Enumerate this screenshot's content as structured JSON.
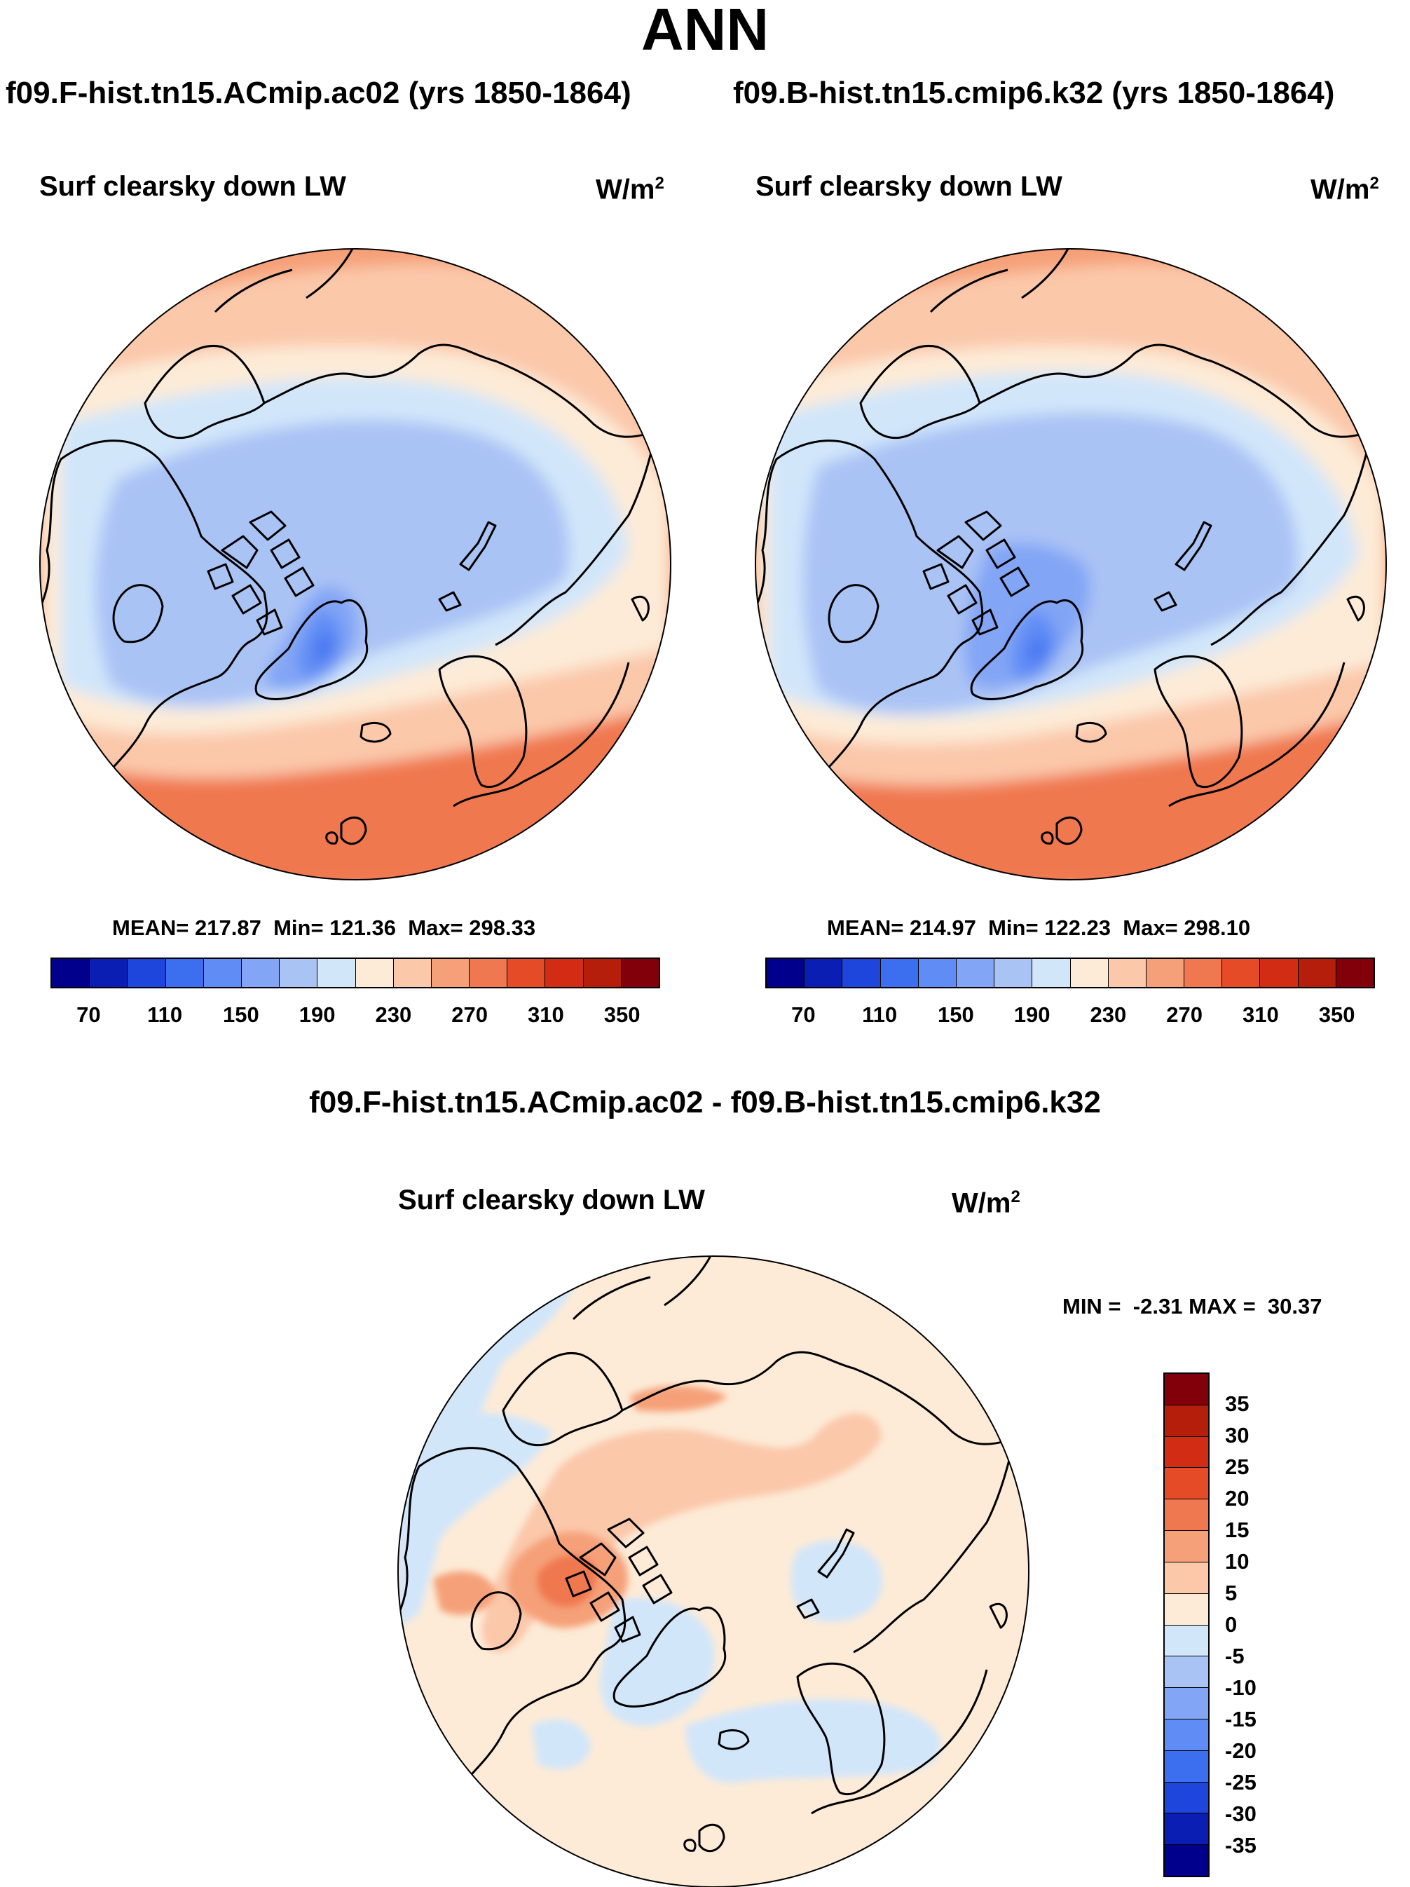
{
  "page_title": "ANN",
  "panels": [
    {
      "model": "f09.F-hist.tn15.ACmip.ac02 (yrs 1850-1864)",
      "variable": "Surf clearsky down LW",
      "units_base": "W/m",
      "units_exp": "2",
      "stats": {
        "mean_label": "MEAN=",
        "mean": "217.87",
        "min_label": "Min=",
        "min": "121.36",
        "max_label": "Max=",
        "max": "298.33"
      }
    },
    {
      "model": "f09.B-hist.tn15.cmip6.k32 (yrs 1850-1864)",
      "variable": "Surf clearsky down LW",
      "units_base": "W/m",
      "units_exp": "2",
      "stats": {
        "mean_label": "MEAN=",
        "mean": "214.97",
        "min_label": "Min=",
        "min": "122.23",
        "max_label": "Max=",
        "max": "298.10"
      }
    }
  ],
  "difference": {
    "title": "f09.F-hist.tn15.ACmip.ac02 - f09.B-hist.tn15.cmip6.k32",
    "variable": "Surf clearsky down LW",
    "units_base": "W/m",
    "units_exp": "2",
    "stats": {
      "min_label": "MIN =",
      "min": "-2.31",
      "max_label": "MAX =",
      "max": "30.37"
    }
  },
  "colorbars": {
    "absolute": {
      "ticks": [
        "70",
        "110",
        "150",
        "190",
        "230",
        "270",
        "310",
        "350"
      ],
      "colors": [
        "#00008c",
        "#0a1eb4",
        "#1e46dc",
        "#3c6ef0",
        "#5f8cf5",
        "#82a5f5",
        "#aac3f5",
        "#d2e6fa",
        "#fdebd7",
        "#fbc8aa",
        "#f5a078",
        "#f07850",
        "#e64b28",
        "#d22d14",
        "#b41e0a",
        "#82000a"
      ]
    },
    "difference": {
      "ticks": [
        "35",
        "30",
        "25",
        "20",
        "15",
        "10",
        "5",
        "0",
        "-5",
        "-10",
        "-15",
        "-20",
        "-25",
        "-30",
        "-35"
      ],
      "colors": [
        "#82000a",
        "#b41e0a",
        "#d22d14",
        "#e64b28",
        "#f07850",
        "#f5a078",
        "#fbc8aa",
        "#fdebd7",
        "#d2e6fa",
        "#aac3f5",
        "#82a5f5",
        "#5f8cf5",
        "#3c6ef0",
        "#1e46dc",
        "#0a1eb4",
        "#00008c"
      ]
    }
  },
  "map_legend": {
    "projection": "North polar stereographic",
    "land_outline": "coastlines"
  }
}
